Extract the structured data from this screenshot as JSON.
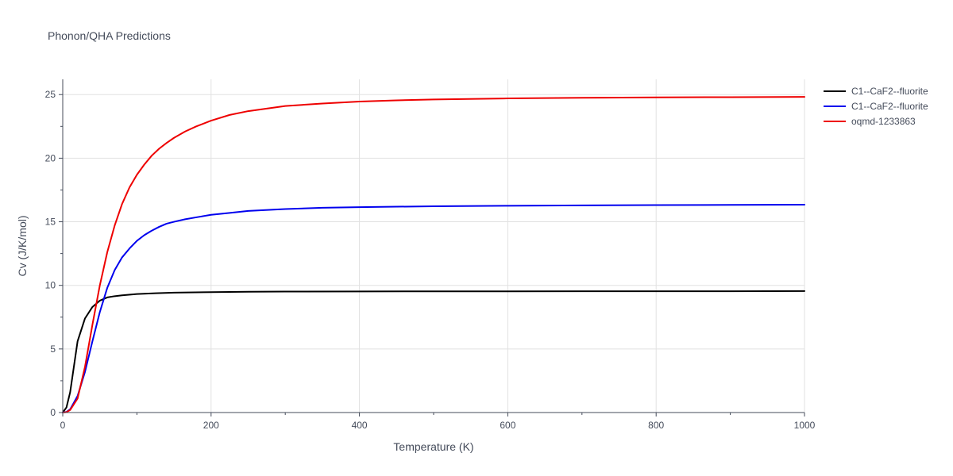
{
  "chart_data": {
    "type": "line",
    "title": "Phonon/QHA Predictions",
    "xlabel": "Temperature (K)",
    "ylabel": "Cv (J/K/mol)",
    "xlim": [
      0,
      1000
    ],
    "ylim": [
      0,
      26.2
    ],
    "xticks": [
      0,
      200,
      400,
      600,
      800,
      1000
    ],
    "yticks": [
      0,
      5,
      10,
      15,
      20,
      25
    ],
    "grid": true,
    "legend": "top-right",
    "series": [
      {
        "name": "C1--CaF2--fluorite",
        "color": "#000000",
        "x": [
          0,
          5,
          10,
          20,
          30,
          40,
          50,
          60,
          70,
          80,
          100,
          125,
          150,
          200,
          250,
          300,
          400,
          500,
          600,
          700,
          800,
          900,
          1000
        ],
        "y": [
          0,
          0.4,
          1.6,
          5.6,
          7.4,
          8.3,
          8.8,
          9.05,
          9.15,
          9.22,
          9.32,
          9.38,
          9.43,
          9.47,
          9.5,
          9.51,
          9.52,
          9.53,
          9.53,
          9.54,
          9.54,
          9.54,
          9.55
        ]
      },
      {
        "name": "C1--CaF2--fluorite",
        "color": "#0000ee",
        "x": [
          0,
          5,
          10,
          20,
          30,
          40,
          50,
          60,
          70,
          80,
          90,
          100,
          110,
          120,
          130,
          140,
          150,
          165,
          180,
          200,
          225,
          250,
          300,
          350,
          400,
          500,
          600,
          700,
          800,
          900,
          1000
        ],
        "y": [
          0,
          0.05,
          0.25,
          1.3,
          3.2,
          5.6,
          7.9,
          9.8,
          11.2,
          12.2,
          12.9,
          13.5,
          13.95,
          14.3,
          14.6,
          14.85,
          15.0,
          15.2,
          15.35,
          15.55,
          15.7,
          15.85,
          16.0,
          16.1,
          16.15,
          16.22,
          16.26,
          16.29,
          16.31,
          16.33,
          16.34
        ]
      },
      {
        "name": "oqmd-1233863",
        "color": "#ee0000",
        "x": [
          0,
          5,
          10,
          20,
          30,
          40,
          50,
          60,
          70,
          80,
          90,
          100,
          110,
          120,
          130,
          140,
          150,
          165,
          180,
          200,
          225,
          250,
          300,
          350,
          400,
          450,
          500,
          600,
          700,
          800,
          900,
          1000
        ],
        "y": [
          0,
          0.03,
          0.2,
          1.1,
          3.6,
          6.9,
          10.0,
          12.6,
          14.7,
          16.4,
          17.7,
          18.7,
          19.5,
          20.2,
          20.75,
          21.2,
          21.6,
          22.1,
          22.5,
          22.95,
          23.4,
          23.7,
          24.1,
          24.3,
          24.45,
          24.55,
          24.62,
          24.7,
          24.75,
          24.78,
          24.8,
          24.82
        ]
      }
    ]
  }
}
